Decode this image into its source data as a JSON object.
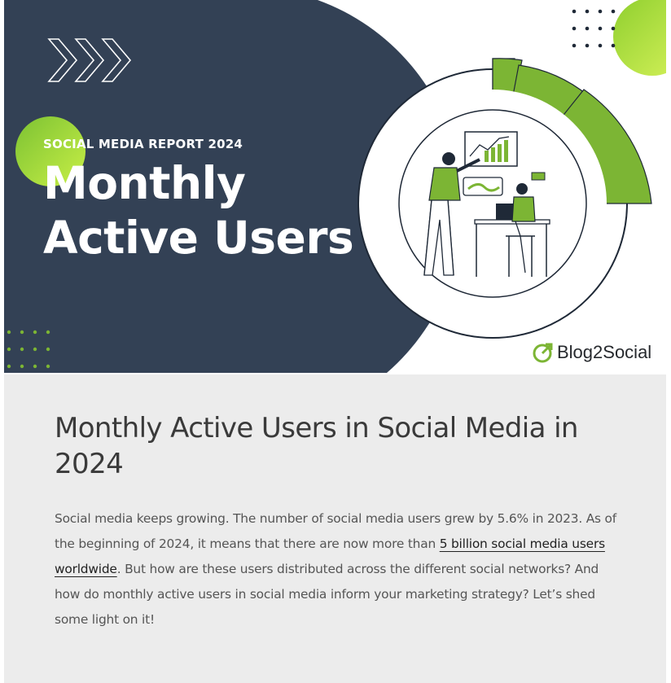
{
  "hero": {
    "kicker": "SOCIAL MEDIA REPORT 2024",
    "title_line1": "Monthly",
    "title_line2": "Active Users",
    "brand_name": "Blog2Social",
    "colors": {
      "navy": "#334155",
      "green": "#7cb534",
      "lime": "#9ee03a"
    },
    "icons": [
      "chevrons-right-icon",
      "dot-grid-icon",
      "presentation-illustration",
      "blog2social-logo-icon"
    ]
  },
  "article": {
    "title": "Monthly Active Users in Social Media in 2024",
    "body_before_link": "Social media keeps growing. The number of social media users grew by 5.6% in 2023. As of the beginning of 2024, it means that there are now more than ",
    "link_text": "5 billion social media users worldwide",
    "body_after_link": ". But how are these users distributed across the different social networks? And how do monthly active users in social media inform your marketing strategy? Let’s shed some light on it!"
  }
}
